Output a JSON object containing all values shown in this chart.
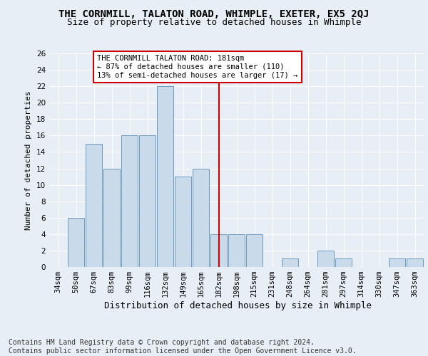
{
  "title1": "THE CORNMILL, TALATON ROAD, WHIMPLE, EXETER, EX5 2QJ",
  "title2": "Size of property relative to detached houses in Whimple",
  "xlabel": "Distribution of detached houses by size in Whimple",
  "ylabel": "Number of detached properties",
  "categories": [
    "34sqm",
    "50sqm",
    "67sqm",
    "83sqm",
    "99sqm",
    "116sqm",
    "132sqm",
    "149sqm",
    "165sqm",
    "182sqm",
    "198sqm",
    "215sqm",
    "231sqm",
    "248sqm",
    "264sqm",
    "281sqm",
    "297sqm",
    "314sqm",
    "330sqm",
    "347sqm",
    "363sqm"
  ],
  "values": [
    0,
    6,
    15,
    12,
    16,
    16,
    22,
    11,
    12,
    4,
    4,
    4,
    0,
    1,
    0,
    2,
    1,
    0,
    0,
    1,
    1
  ],
  "bar_color": "#c9daea",
  "bar_edge_color": "#5b8db8",
  "red_line_index": 9,
  "red_line_color": "#cc0000",
  "annotation_text": "THE CORNMILL TALATON ROAD: 181sqm\n← 87% of detached houses are smaller (110)\n13% of semi-detached houses are larger (17) →",
  "annotation_box_color": "#ffffff",
  "annotation_box_edge": "#cc0000",
  "ylim": [
    0,
    26
  ],
  "yticks": [
    0,
    2,
    4,
    6,
    8,
    10,
    12,
    14,
    16,
    18,
    20,
    22,
    24,
    26
  ],
  "footer_text": "Contains HM Land Registry data © Crown copyright and database right 2024.\nContains public sector information licensed under the Open Government Licence v3.0.",
  "bg_color": "#e8eef5",
  "plot_bg_color": "#e8eef5",
  "grid_color": "#ffffff",
  "title1_fontsize": 10,
  "title2_fontsize": 9,
  "xlabel_fontsize": 9,
  "ylabel_fontsize": 8,
  "tick_fontsize": 7.5,
  "footer_fontsize": 7,
  "ann_fontsize": 7.5
}
